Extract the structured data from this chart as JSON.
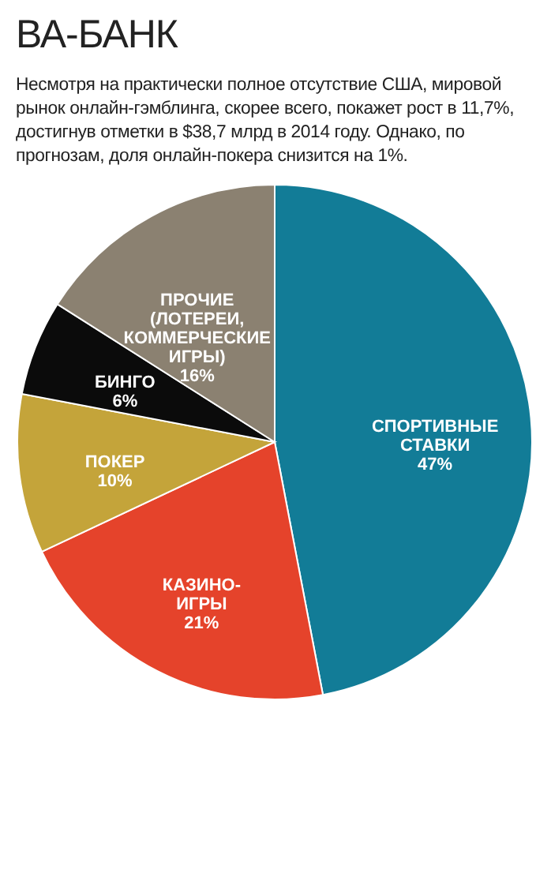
{
  "chart_data": {
    "type": "pie",
    "title": "ВА-БАНК",
    "subtitle": "Несмотря на практически полное отсутствие США, мировой рынок онлайн-гэмблинга, скорее всего, покажет рост в 11,7%, достигнув отметки в $38,7 млрд в 2014 году. Однако, по прогнозам, доля онлайн-покера снизится на 1%.",
    "categories": [
      "СПОРТИВНЫЕ СТАВКИ",
      "КАЗИНО-ИГРЫ",
      "ПОКЕР",
      "БИНГО",
      "ПРОЧИЕ (ЛОТЕРЕИ, КОММЕРЧЕСКИЕ ИГРЫ)"
    ],
    "values": [
      47,
      21,
      10,
      6,
      16
    ],
    "colors": [
      "#127c97",
      "#e5432b",
      "#c4a43a",
      "#0b0b0b",
      "#8b8171"
    ],
    "value_labels": [
      "47%",
      "21%",
      "10%",
      "6%",
      "16%"
    ],
    "legend": false
  }
}
